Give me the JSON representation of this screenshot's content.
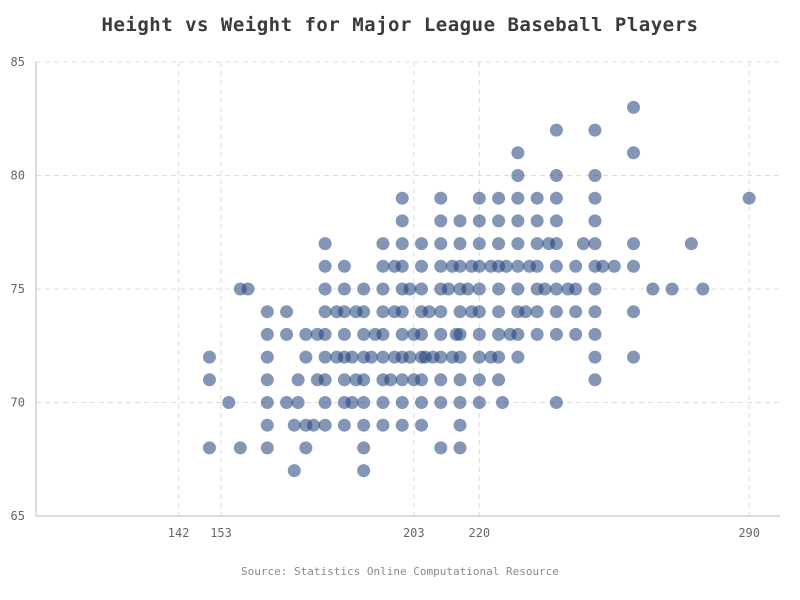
{
  "chart_data": {
    "type": "scatter",
    "title": "Height vs Weight for Major League Baseball Players",
    "source": "Source: Statistics Online Computational Resource",
    "xlabel": "",
    "ylabel": "",
    "xlim": [
      105,
      298
    ],
    "ylim": [
      65,
      85
    ],
    "xticks": [
      142,
      153,
      203,
      220,
      290
    ],
    "yticks": [
      65,
      70,
      75,
      80,
      85
    ],
    "grid": true,
    "legend": "none",
    "point_color": "#1f3f7a",
    "points": [
      [
        150,
        68
      ],
      [
        150,
        71
      ],
      [
        150,
        72
      ],
      [
        155,
        70
      ],
      [
        158,
        68
      ],
      [
        158,
        75
      ],
      [
        160,
        75
      ],
      [
        165,
        68
      ],
      [
        165,
        69
      ],
      [
        165,
        70
      ],
      [
        165,
        71
      ],
      [
        165,
        72
      ],
      [
        165,
        73
      ],
      [
        165,
        74
      ],
      [
        170,
        70
      ],
      [
        170,
        73
      ],
      [
        170,
        74
      ],
      [
        172,
        67
      ],
      [
        172,
        69
      ],
      [
        173,
        70
      ],
      [
        173,
        71
      ],
      [
        175,
        68
      ],
      [
        175,
        69
      ],
      [
        175,
        72
      ],
      [
        175,
        73
      ],
      [
        177,
        69
      ],
      [
        178,
        71
      ],
      [
        178,
        73
      ],
      [
        180,
        69
      ],
      [
        180,
        70
      ],
      [
        180,
        71
      ],
      [
        180,
        72
      ],
      [
        180,
        73
      ],
      [
        180,
        74
      ],
      [
        180,
        75
      ],
      [
        180,
        76
      ],
      [
        180,
        77
      ],
      [
        183,
        72
      ],
      [
        183,
        74
      ],
      [
        185,
        69
      ],
      [
        185,
        70
      ],
      [
        185,
        71
      ],
      [
        185,
        72
      ],
      [
        185,
        73
      ],
      [
        185,
        74
      ],
      [
        185,
        75
      ],
      [
        185,
        76
      ],
      [
        187,
        70
      ],
      [
        187,
        72
      ],
      [
        188,
        71
      ],
      [
        188,
        74
      ],
      [
        190,
        67
      ],
      [
        190,
        68
      ],
      [
        190,
        69
      ],
      [
        190,
        70
      ],
      [
        190,
        71
      ],
      [
        190,
        72
      ],
      [
        190,
        73
      ],
      [
        190,
        74
      ],
      [
        190,
        75
      ],
      [
        192,
        72
      ],
      [
        193,
        73
      ],
      [
        195,
        69
      ],
      [
        195,
        70
      ],
      [
        195,
        71
      ],
      [
        195,
        72
      ],
      [
        195,
        73
      ],
      [
        195,
        74
      ],
      [
        195,
        75
      ],
      [
        195,
        76
      ],
      [
        195,
        77
      ],
      [
        197,
        71
      ],
      [
        198,
        72
      ],
      [
        198,
        74
      ],
      [
        198,
        76
      ],
      [
        200,
        69
      ],
      [
        200,
        70
      ],
      [
        200,
        71
      ],
      [
        200,
        72
      ],
      [
        200,
        73
      ],
      [
        200,
        74
      ],
      [
        200,
        75
      ],
      [
        200,
        76
      ],
      [
        200,
        77
      ],
      [
        200,
        78
      ],
      [
        200,
        79
      ],
      [
        202,
        72
      ],
      [
        202,
        75
      ],
      [
        203,
        71
      ],
      [
        203,
        73
      ],
      [
        205,
        69
      ],
      [
        205,
        70
      ],
      [
        205,
        71
      ],
      [
        205,
        72
      ],
      [
        205,
        73
      ],
      [
        205,
        74
      ],
      [
        205,
        75
      ],
      [
        205,
        76
      ],
      [
        205,
        77
      ],
      [
        206,
        72
      ],
      [
        207,
        74
      ],
      [
        208,
        72
      ],
      [
        210,
        68
      ],
      [
        210,
        70
      ],
      [
        210,
        71
      ],
      [
        210,
        72
      ],
      [
        210,
        73
      ],
      [
        210,
        74
      ],
      [
        210,
        75
      ],
      [
        210,
        76
      ],
      [
        210,
        77
      ],
      [
        210,
        78
      ],
      [
        210,
        79
      ],
      [
        212,
        75
      ],
      [
        213,
        72
      ],
      [
        213,
        76
      ],
      [
        214,
        73
      ],
      [
        215,
        68
      ],
      [
        215,
        69
      ],
      [
        215,
        70
      ],
      [
        215,
        71
      ],
      [
        215,
        72
      ],
      [
        215,
        73
      ],
      [
        215,
        74
      ],
      [
        215,
        75
      ],
      [
        215,
        76
      ],
      [
        215,
        77
      ],
      [
        215,
        78
      ],
      [
        217,
        75
      ],
      [
        218,
        74
      ],
      [
        218,
        76
      ],
      [
        220,
        70
      ],
      [
        220,
        71
      ],
      [
        220,
        72
      ],
      [
        220,
        73
      ],
      [
        220,
        74
      ],
      [
        220,
        75
      ],
      [
        220,
        76
      ],
      [
        220,
        77
      ],
      [
        220,
        78
      ],
      [
        220,
        79
      ],
      [
        223,
        72
      ],
      [
        223,
        76
      ],
      [
        225,
        71
      ],
      [
        225,
        72
      ],
      [
        225,
        73
      ],
      [
        225,
        74
      ],
      [
        225,
        75
      ],
      [
        225,
        76
      ],
      [
        225,
        77
      ],
      [
        225,
        78
      ],
      [
        225,
        79
      ],
      [
        226,
        70
      ],
      [
        227,
        76
      ],
      [
        228,
        73
      ],
      [
        230,
        72
      ],
      [
        230,
        73
      ],
      [
        230,
        74
      ],
      [
        230,
        75
      ],
      [
        230,
        76
      ],
      [
        230,
        77
      ],
      [
        230,
        78
      ],
      [
        230,
        79
      ],
      [
        230,
        80
      ],
      [
        230,
        81
      ],
      [
        232,
        74
      ],
      [
        233,
        76
      ],
      [
        235,
        73
      ],
      [
        235,
        74
      ],
      [
        235,
        75
      ],
      [
        235,
        76
      ],
      [
        235,
        77
      ],
      [
        235,
        78
      ],
      [
        235,
        79
      ],
      [
        237,
        75
      ],
      [
        238,
        77
      ],
      [
        240,
        70
      ],
      [
        240,
        73
      ],
      [
        240,
        74
      ],
      [
        240,
        75
      ],
      [
        240,
        76
      ],
      [
        240,
        77
      ],
      [
        240,
        78
      ],
      [
        240,
        79
      ],
      [
        240,
        80
      ],
      [
        240,
        82
      ],
      [
        243,
        75
      ],
      [
        245,
        73
      ],
      [
        245,
        74
      ],
      [
        245,
        75
      ],
      [
        245,
        76
      ],
      [
        247,
        77
      ],
      [
        250,
        71
      ],
      [
        250,
        72
      ],
      [
        250,
        73
      ],
      [
        250,
        74
      ],
      [
        250,
        75
      ],
      [
        250,
        76
      ],
      [
        250,
        77
      ],
      [
        250,
        78
      ],
      [
        250,
        79
      ],
      [
        250,
        80
      ],
      [
        250,
        82
      ],
      [
        252,
        76
      ],
      [
        255,
        76
      ],
      [
        260,
        72
      ],
      [
        260,
        74
      ],
      [
        260,
        76
      ],
      [
        260,
        77
      ],
      [
        260,
        81
      ],
      [
        260,
        83
      ],
      [
        265,
        75
      ],
      [
        270,
        75
      ],
      [
        275,
        77
      ],
      [
        278,
        75
      ],
      [
        290,
        79
      ]
    ]
  }
}
